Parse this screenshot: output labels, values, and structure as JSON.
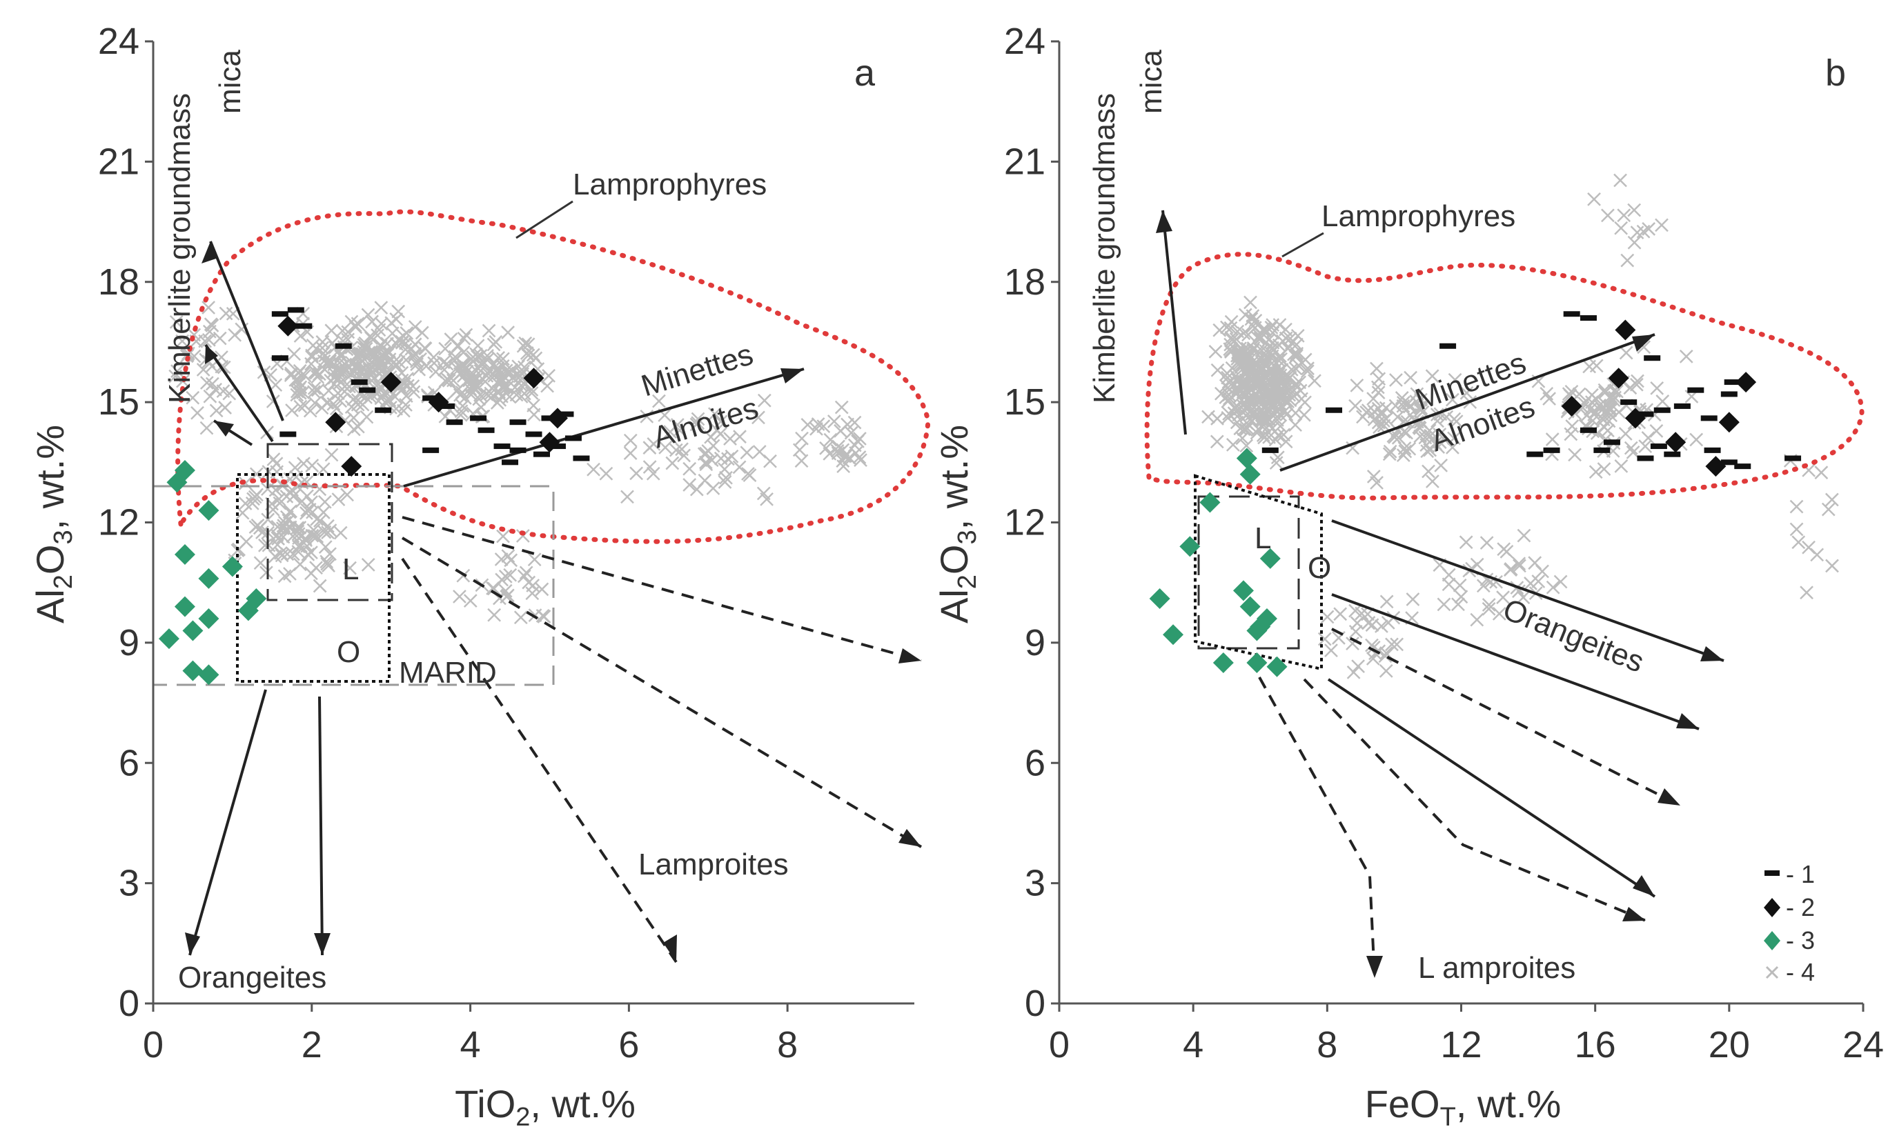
{
  "chart_data": [
    {
      "type": "scatter",
      "panel": "a",
      "xlabel": "TiO₂, wt.%",
      "ylabel": "Al₂O₃, wt.%",
      "xlim": [
        0,
        9.6
      ],
      "ylim": [
        0,
        24
      ],
      "xticks": [
        0,
        2,
        4,
        6,
        8
      ],
      "yticks": [
        0,
        3,
        6,
        9,
        12,
        15,
        18,
        21,
        24
      ],
      "grid": false,
      "field_labels": {
        "kimberlite": "Kimberlite groundmass",
        "mica": "mica",
        "lamprophyres": "Lamprophyres",
        "minettes": "Minettes",
        "alnoites": "Alnoites",
        "lamproites": "Lamproites",
        "orangeites": "Orangeites",
        "marid": "MARID",
        "box_l": "L",
        "box_o": "O"
      },
      "series": [
        {
          "name": "1",
          "marker": "dash",
          "color": "#111111",
          "points": [
            [
              1.6,
              17.2
            ],
            [
              1.8,
              17.3
            ],
            [
              1.9,
              16.9
            ],
            [
              2.4,
              16.4
            ],
            [
              1.6,
              16.1
            ],
            [
              2.6,
              15.5
            ],
            [
              2.7,
              15.3
            ],
            [
              2.9,
              14.8
            ],
            [
              3.5,
              15.1
            ],
            [
              3.7,
              14.9
            ],
            [
              4.1,
              14.6
            ],
            [
              3.8,
              14.5
            ],
            [
              4.2,
              14.3
            ],
            [
              4.6,
              14.5
            ],
            [
              4.8,
              14.2
            ],
            [
              5.0,
              14.6
            ],
            [
              5.2,
              14.7
            ],
            [
              5.3,
              14.1
            ],
            [
              4.4,
              13.9
            ],
            [
              4.6,
              13.8
            ],
            [
              4.9,
              13.7
            ],
            [
              5.1,
              13.9
            ],
            [
              5.4,
              13.6
            ],
            [
              3.5,
              13.8
            ],
            [
              4.5,
              13.5
            ],
            [
              1.7,
              14.2
            ]
          ]
        },
        {
          "name": "2",
          "marker": "diamond",
          "color": "#111111",
          "points": [
            [
              1.7,
              16.9
            ],
            [
              3.0,
              15.5
            ],
            [
              3.6,
              15.0
            ],
            [
              4.8,
              15.6
            ],
            [
              5.1,
              14.6
            ],
            [
              5.0,
              14.0
            ],
            [
              2.3,
              14.5
            ],
            [
              2.5,
              13.4
            ]
          ]
        },
        {
          "name": "3",
          "marker": "diamond",
          "color": "#2e9a6e",
          "points": [
            [
              0.4,
              13.3
            ],
            [
              0.3,
              13.0
            ],
            [
              0.7,
              12.3
            ],
            [
              0.4,
              11.2
            ],
            [
              1.0,
              10.9
            ],
            [
              0.7,
              10.6
            ],
            [
              1.3,
              10.1
            ],
            [
              1.2,
              9.8
            ],
            [
              0.4,
              9.9
            ],
            [
              0.7,
              9.6
            ],
            [
              0.5,
              9.3
            ],
            [
              0.2,
              9.1
            ],
            [
              0.5,
              8.3
            ],
            [
              0.7,
              8.2
            ]
          ]
        },
        {
          "name": "4",
          "marker": "cross",
          "color": "#bbbbbb",
          "points": []
        }
      ]
    },
    {
      "type": "scatter",
      "panel": "b",
      "xlabel": "FeOT, wt.%",
      "xlabel_main": "FeO",
      "xlabel_sub": "T",
      "xlabel_rest": ", wt.%",
      "ylabel": "Al₂O₃, wt.%",
      "xlim": [
        0,
        24
      ],
      "ylim": [
        0,
        24
      ],
      "xticks": [
        0,
        4,
        8,
        12,
        16,
        20,
        24
      ],
      "yticks": [
        0,
        3,
        6,
        9,
        12,
        15,
        18,
        21,
        24
      ],
      "grid": false,
      "field_labels": {
        "kimberlite": "Kimberlite groundmass",
        "mica": "mica",
        "lamprophyres": "Lamprophyres",
        "minettes": "Minettes",
        "alnoites": "Alnoites",
        "lamproites": "L amproites",
        "orangeites": "Orangeites",
        "box_l": "L",
        "box_o": "O"
      },
      "series": [
        {
          "name": "1",
          "marker": "dash",
          "color": "#111111",
          "points": [
            [
              15.3,
              17.2
            ],
            [
              15.8,
              17.1
            ],
            [
              11.6,
              16.4
            ],
            [
              17.7,
              16.1
            ],
            [
              8.2,
              14.8
            ],
            [
              17.0,
              15.0
            ],
            [
              17.5,
              14.7
            ],
            [
              18.0,
              14.8
            ],
            [
              19.0,
              15.3
            ],
            [
              20.1,
              15.5
            ],
            [
              20.0,
              15.2
            ],
            [
              18.6,
              14.9
            ],
            [
              19.4,
              14.6
            ],
            [
              15.8,
              14.3
            ],
            [
              16.5,
              14.0
            ],
            [
              17.9,
              13.9
            ],
            [
              18.3,
              13.7
            ],
            [
              19.5,
              13.8
            ],
            [
              20.0,
              13.5
            ],
            [
              21.9,
              13.6
            ],
            [
              14.2,
              13.7
            ],
            [
              14.7,
              13.8
            ],
            [
              16.2,
              13.8
            ],
            [
              17.5,
              13.6
            ],
            [
              6.3,
              13.8
            ],
            [
              20.4,
              13.4
            ]
          ]
        },
        {
          "name": "2",
          "marker": "diamond",
          "color": "#111111",
          "points": [
            [
              16.9,
              16.8
            ],
            [
              16.7,
              15.6
            ],
            [
              15.3,
              14.9
            ],
            [
              17.2,
              14.6
            ],
            [
              18.4,
              14.0
            ],
            [
              20.5,
              15.5
            ],
            [
              20.0,
              14.5
            ],
            [
              19.6,
              13.4
            ]
          ]
        },
        {
          "name": "3",
          "marker": "diamond",
          "color": "#2e9a6e",
          "points": [
            [
              5.6,
              13.6
            ],
            [
              5.7,
              13.2
            ],
            [
              4.5,
              12.5
            ],
            [
              3.9,
              11.4
            ],
            [
              6.3,
              11.1
            ],
            [
              5.5,
              10.3
            ],
            [
              5.7,
              9.9
            ],
            [
              6.2,
              9.6
            ],
            [
              6.0,
              9.4
            ],
            [
              5.9,
              9.3
            ],
            [
              3.0,
              10.1
            ],
            [
              3.4,
              9.2
            ],
            [
              4.9,
              8.5
            ],
            [
              5.9,
              8.5
            ],
            [
              6.5,
              8.4
            ]
          ]
        },
        {
          "name": "4",
          "marker": "cross",
          "color": "#bbbbbb",
          "points": []
        }
      ],
      "legend": {
        "position": "bottom-right",
        "entries": [
          "- 1",
          "- 2",
          "- 3",
          "- 4"
        ]
      }
    }
  ]
}
